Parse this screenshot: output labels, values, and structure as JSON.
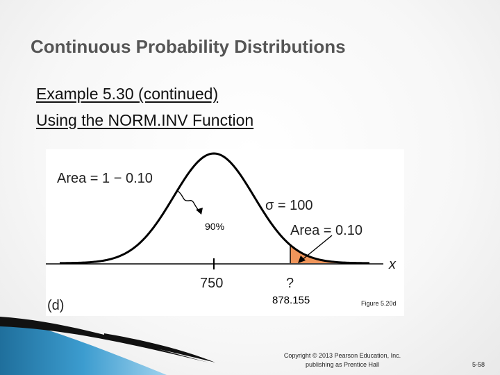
{
  "slide": {
    "title": "Continuous Probability Distributions",
    "subtitle_line1": "Example 5.30 (continued)",
    "subtitle_line2": "Using the NORM.INV Function"
  },
  "figure": {
    "area_left_label": "Area = 1 − 0.10",
    "sigma_label": "σ = 100",
    "area_right_label": "Area = 0.10",
    "axis_var": "x",
    "mean_label": "750",
    "unknown_label": "?",
    "panel_label": "(d)",
    "shade_color": "#f0955a"
  },
  "annotations": {
    "percent": "90%",
    "answer": "878.155",
    "figure_caption": "Figure 5.20d"
  },
  "footer": {
    "copyright_line1": "Copyright © 2013 Pearson Education, Inc.",
    "copyright_line2": "publishing as Prentice Hall",
    "slide_number": "5-58"
  }
}
